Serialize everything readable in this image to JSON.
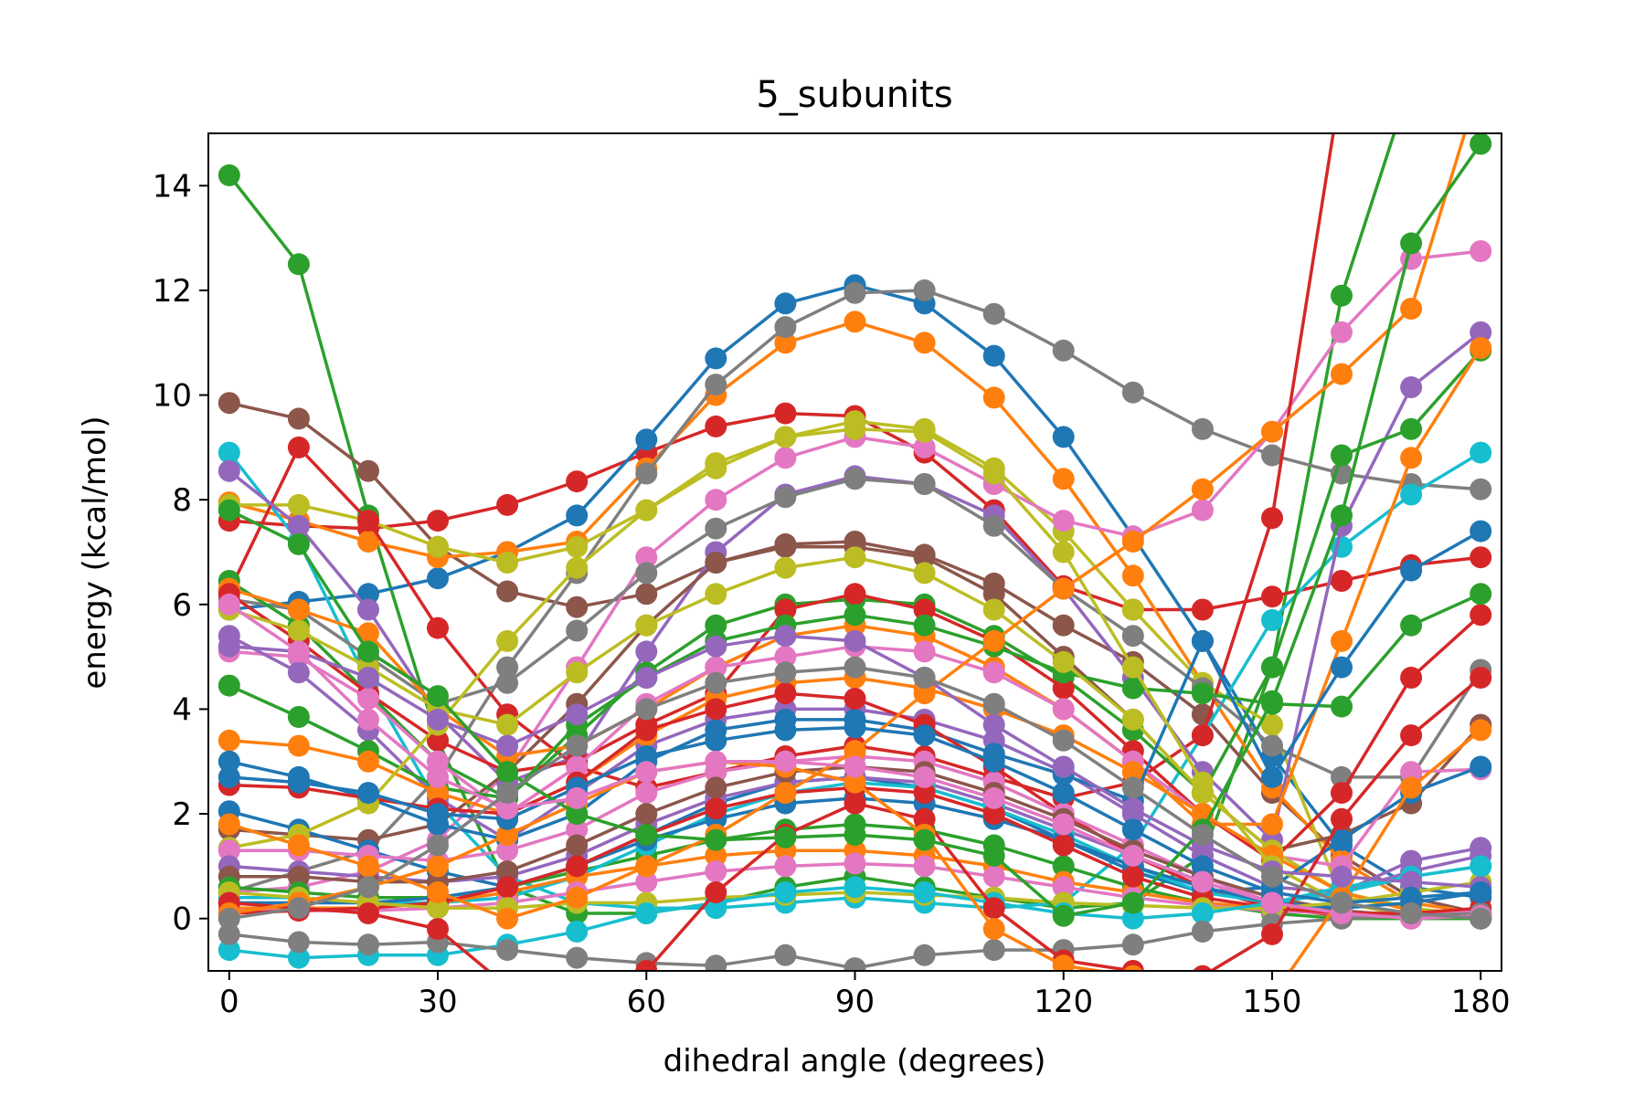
{
  "chart_data": {
    "type": "line",
    "title": "5_subunits",
    "xlabel": "dihedral angle (degrees)",
    "ylabel": "energy (kcal/mol)",
    "xlim": [
      -3,
      183
    ],
    "ylim": [
      -1,
      15
    ],
    "xticks": [
      0,
      30,
      60,
      90,
      120,
      150,
      180
    ],
    "yticks": [
      0,
      2,
      4,
      6,
      8,
      10,
      12,
      14
    ],
    "grid": false,
    "legend": "none",
    "marker": "circle",
    "x": [
      0,
      10,
      20,
      30,
      40,
      50,
      60,
      70,
      80,
      90,
      100,
      110,
      120,
      130,
      140,
      150,
      160,
      170,
      180
    ],
    "series": [
      {
        "color": "#2ca02c",
        "values": [
          14.2,
          12.5,
          7.7,
          3.4,
          0.6,
          0.1,
          0.1,
          0.3,
          0.6,
          0.8,
          0.6,
          0.4,
          0.2,
          0.3,
          1.2,
          4.8,
          11.9,
          16.0,
          20.0
        ]
      },
      {
        "color": "#8c564b",
        "values": [
          9.85,
          9.55,
          8.55,
          7.1,
          6.25,
          5.95,
          6.2,
          6.8,
          7.15,
          7.2,
          6.95,
          6.4,
          5.6,
          4.9,
          3.9,
          2.4,
          1.2,
          0.4,
          0.1
        ]
      },
      {
        "color": "#d62728",
        "values": [
          7.6,
          7.5,
          7.45,
          7.6,
          7.9,
          8.35,
          8.9,
          9.4,
          9.65,
          9.6,
          8.9,
          7.8,
          6.35,
          5.9,
          5.9,
          6.15,
          6.45,
          6.75,
          6.9
        ]
      },
      {
        "color": "#1f77b4",
        "values": [
          5.9,
          6.05,
          6.2,
          6.5,
          7.0,
          7.7,
          9.15,
          10.7,
          11.75,
          12.1,
          11.75,
          10.75,
          9.2,
          7.3,
          5.3,
          3.1,
          1.4,
          0.6,
          0.4
        ]
      },
      {
        "color": "#ff7f0e",
        "values": [
          7.95,
          7.6,
          7.2,
          6.9,
          7.0,
          7.2,
          8.6,
          10.0,
          11.0,
          11.4,
          11.0,
          9.95,
          8.4,
          6.55,
          4.5,
          2.5,
          1.1,
          0.3,
          0.1
        ]
      },
      {
        "color": "#7f7f7f",
        "values": [
          0.5,
          0.9,
          1.3,
          2.7,
          4.8,
          6.6,
          8.5,
          10.2,
          11.3,
          11.95,
          12.0,
          11.55,
          10.85,
          10.05,
          9.35,
          8.85,
          8.5,
          8.3,
          8.2
        ]
      },
      {
        "color": "#bcbd22",
        "values": [
          7.9,
          7.9,
          7.6,
          7.1,
          6.8,
          7.1,
          7.8,
          8.6,
          9.2,
          9.5,
          9.35,
          8.6,
          7.4,
          5.9,
          4.5,
          3.7,
          0.4,
          0.2,
          0.0
        ]
      },
      {
        "color": "#e377c2",
        "values": [
          0.5,
          0.6,
          0.9,
          1.5,
          2.8,
          4.8,
          6.9,
          8.0,
          8.8,
          9.2,
          9.0,
          8.3,
          7.6,
          7.3,
          7.8,
          9.3,
          11.2,
          12.6,
          12.75
        ]
      },
      {
        "color": "#17becf",
        "values": [
          8.9,
          7.2,
          4.5,
          2.2,
          0.8,
          0.3,
          0.2,
          0.2,
          0.3,
          0.4,
          0.3,
          0.2,
          0.3,
          1.4,
          3.5,
          5.7,
          7.1,
          8.1,
          8.9
        ]
      },
      {
        "color": "#d62728",
        "values": [
          6.25,
          9.0,
          7.6,
          5.55,
          3.9,
          2.9,
          2.5,
          2.8,
          3.1,
          3.3,
          3.1,
          2.7,
          2.3,
          2.6,
          3.5,
          7.65,
          16.0,
          16.0,
          16.0
        ]
      },
      {
        "color": "#9467bd",
        "values": [
          8.55,
          7.5,
          5.9,
          3.9,
          2.6,
          3.1,
          5.1,
          7.0,
          8.1,
          8.45,
          8.3,
          7.7,
          6.3,
          4.6,
          2.8,
          1.5,
          7.5,
          10.15,
          11.2
        ]
      },
      {
        "color": "#7f7f7f",
        "values": [
          6.1,
          5.9,
          5.0,
          4.1,
          4.5,
          5.5,
          6.6,
          7.45,
          8.05,
          8.4,
          8.3,
          7.5,
          6.3,
          5.4,
          4.4,
          3.3,
          2.7,
          2.7,
          4.75
        ]
      },
      {
        "color": "#8c564b",
        "values": [
          1.7,
          1.6,
          1.5,
          1.8,
          2.8,
          4.1,
          5.6,
          6.8,
          7.1,
          7.1,
          6.9,
          6.2,
          5.0,
          3.8,
          2.4,
          1.3,
          1.6,
          2.2,
          3.7
        ]
      },
      {
        "color": "#2ca02c",
        "values": [
          6.45,
          5.6,
          4.3,
          3.0,
          2.3,
          3.5,
          4.7,
          5.6,
          6.0,
          6.1,
          6.0,
          5.4,
          4.6,
          3.6,
          2.4,
          4.8,
          8.85,
          9.35,
          10.85
        ]
      },
      {
        "color": "#ff7f0e",
        "values": [
          6.3,
          5.9,
          5.45,
          4.0,
          3.1,
          3.3,
          4.0,
          4.8,
          5.4,
          5.6,
          5.4,
          4.8,
          4.0,
          3.0,
          1.8,
          1.8,
          5.3,
          8.8,
          10.9
        ]
      },
      {
        "color": "#d62728",
        "values": [
          6.2,
          5.3,
          4.3,
          3.4,
          2.8,
          3.0,
          3.7,
          4.3,
          5.9,
          6.2,
          5.9,
          5.3,
          4.4,
          3.2,
          2.0,
          1.1,
          2.4,
          4.6,
          5.8
        ]
      },
      {
        "color": "#e377c2",
        "values": [
          5.1,
          5.0,
          4.2,
          3.0,
          2.0,
          2.9,
          4.1,
          4.8,
          5.0,
          5.2,
          5.1,
          4.7,
          4.0,
          3.0,
          2.0,
          1.2,
          1.0,
          2.8,
          2.85
        ]
      },
      {
        "color": "#9467bd",
        "values": [
          5.4,
          4.7,
          3.6,
          2.3,
          1.5,
          2.4,
          3.3,
          3.8,
          4.0,
          4.0,
          3.8,
          3.4,
          2.8,
          2.0,
          1.2,
          0.6,
          0.5,
          1.1,
          1.35
        ]
      },
      {
        "color": "#2ca02c",
        "values": [
          4.45,
          3.85,
          3.2,
          2.5,
          2.3,
          3.7,
          4.6,
          5.3,
          5.6,
          5.8,
          5.6,
          5.2,
          4.7,
          4.4,
          4.3,
          4.1,
          4.05,
          5.6,
          6.2
        ]
      },
      {
        "color": "#bcbd22",
        "values": [
          5.9,
          5.5,
          4.8,
          4.0,
          3.7,
          4.7,
          5.6,
          6.2,
          6.7,
          6.9,
          6.6,
          5.9,
          4.9,
          3.8,
          2.4,
          1.3,
          0.5,
          0.2,
          0.05
        ]
      },
      {
        "color": "#ff7f0e",
        "values": [
          3.4,
          3.3,
          3.0,
          2.4,
          2.0,
          2.6,
          3.5,
          4.2,
          4.5,
          4.6,
          4.4,
          4.0,
          3.5,
          2.8,
          2.0,
          1.2,
          0.5,
          0.15,
          0.0
        ]
      },
      {
        "color": "#1f77b4",
        "values": [
          3.0,
          2.7,
          2.3,
          1.8,
          1.5,
          2.0,
          3.0,
          3.6,
          3.8,
          3.8,
          3.6,
          3.15,
          2.75,
          2.25,
          5.3,
          2.7,
          4.8,
          6.65,
          7.4
        ]
      },
      {
        "color": "#d62728",
        "values": [
          2.55,
          2.5,
          2.3,
          2.1,
          2.0,
          2.6,
          3.6,
          4.0,
          4.3,
          4.2,
          3.7,
          2.9,
          2.0,
          1.2,
          0.6,
          0.2,
          0.05,
          0.0,
          0.0
        ]
      },
      {
        "color": "#1f77b4",
        "values": [
          2.05,
          1.7,
          1.3,
          0.9,
          0.6,
          1.0,
          1.6,
          2.2,
          2.6,
          2.7,
          2.5,
          2.1,
          1.5,
          0.9,
          0.5,
          0.6,
          1.5,
          2.4,
          2.9
        ]
      },
      {
        "color": "#bcbd22",
        "values": [
          1.35,
          1.6,
          2.2,
          3.7,
          5.3,
          6.7,
          7.8,
          8.7,
          9.2,
          9.35,
          9.3,
          8.5,
          7.0,
          4.8,
          2.6,
          1.0,
          0.3,
          0.05,
          0.0
        ]
      },
      {
        "color": "#e377c2",
        "values": [
          1.3,
          1.3,
          1.2,
          1.1,
          1.3,
          1.7,
          2.4,
          2.8,
          3.0,
          3.1,
          3.0,
          2.6,
          2.0,
          1.4,
          0.8,
          0.3,
          0.05,
          0.0,
          0.0
        ]
      },
      {
        "color": "#9467bd",
        "values": [
          1.0,
          0.9,
          0.8,
          0.7,
          0.8,
          1.2,
          1.8,
          2.3,
          2.6,
          2.7,
          2.6,
          2.2,
          1.7,
          1.2,
          0.7,
          0.3,
          0.5,
          0.9,
          1.2
        ]
      },
      {
        "color": "#8c564b",
        "values": [
          0.8,
          0.8,
          0.7,
          0.7,
          0.9,
          1.4,
          2.0,
          2.5,
          2.8,
          2.9,
          2.8,
          2.4,
          1.9,
          1.3,
          0.8,
          0.4,
          0.15,
          0.05,
          0.0
        ]
      },
      {
        "color": "#2ca02c",
        "values": [
          0.6,
          0.5,
          0.4,
          0.4,
          0.6,
          0.9,
          1.2,
          1.5,
          1.7,
          1.8,
          1.7,
          1.4,
          1.0,
          0.6,
          0.3,
          0.1,
          0.0,
          0.0,
          0.0
        ]
      },
      {
        "color": "#17becf",
        "values": [
          0.4,
          0.4,
          0.3,
          0.3,
          0.4,
          0.8,
          1.4,
          2.0,
          2.4,
          2.6,
          2.5,
          2.1,
          1.6,
          1.0,
          0.5,
          0.3,
          0.5,
          0.8,
          1.0
        ]
      },
      {
        "color": "#1f77b4",
        "values": [
          0.3,
          0.3,
          0.3,
          0.4,
          0.6,
          1.0,
          1.5,
          1.9,
          2.2,
          2.3,
          2.2,
          1.9,
          1.5,
          1.0,
          0.6,
          0.3,
          0.2,
          0.3,
          0.5
        ]
      },
      {
        "color": "#ff7f0e",
        "values": [
          0.2,
          0.2,
          0.2,
          0.3,
          0.5,
          0.8,
          1.0,
          1.2,
          1.3,
          1.3,
          1.2,
          1.0,
          0.7,
          0.5,
          0.3,
          0.2,
          0.1,
          0.1,
          0.1
        ]
      },
      {
        "color": "#e377c2",
        "values": [
          0.15,
          0.15,
          0.15,
          0.2,
          0.3,
          0.5,
          0.7,
          0.9,
          1.0,
          1.05,
          1.0,
          0.8,
          0.6,
          0.4,
          0.25,
          0.15,
          0.1,
          0.1,
          0.15
        ]
      },
      {
        "color": "#d62728",
        "values": [
          0.1,
          0.15,
          0.2,
          0.3,
          0.6,
          1.0,
          1.6,
          2.1,
          2.4,
          2.5,
          2.4,
          2.0,
          1.4,
          0.8,
          0.4,
          0.2,
          0.1,
          0.1,
          0.2
        ]
      },
      {
        "color": "#bcbd22",
        "values": [
          0.5,
          0.4,
          0.3,
          0.2,
          0.2,
          0.3,
          0.3,
          0.4,
          0.45,
          0.5,
          0.45,
          0.4,
          0.3,
          0.25,
          0.2,
          0.2,
          0.3,
          0.5,
          0.7
        ]
      },
      {
        "color": "#17becf",
        "values": [
          -0.6,
          -0.75,
          -0.7,
          -0.7,
          -0.5,
          -0.25,
          0.1,
          0.3,
          0.5,
          0.6,
          0.5,
          0.3,
          0.1,
          0.0,
          0.1,
          0.3,
          0.6,
          0.8,
          1.0
        ]
      },
      {
        "color": "#7f7f7f",
        "values": [
          -0.3,
          -0.45,
          -0.5,
          -0.45,
          -0.6,
          -0.75,
          -0.85,
          -0.9,
          -0.7,
          -0.95,
          -0.7,
          -0.6,
          -0.6,
          -0.5,
          -0.25,
          -0.1,
          0.0,
          0.05,
          0.1
        ]
      },
      {
        "color": "#ff7f0e",
        "values": [
          1.8,
          1.4,
          1.0,
          0.5,
          0.0,
          0.4,
          1.0,
          1.6,
          2.4,
          3.2,
          4.3,
          5.3,
          6.3,
          7.2,
          8.2,
          9.3,
          10.4,
          11.65,
          16.0
        ]
      },
      {
        "color": "#d62728",
        "values": [
          0.3,
          0.2,
          0.1,
          -0.2,
          -1.3,
          -2.0,
          -1.0,
          0.5,
          1.6,
          2.2,
          1.9,
          0.2,
          -0.8,
          -1.0,
          -1.1,
          -0.3,
          1.9,
          3.5,
          4.6
        ]
      },
      {
        "color": "#ff7f0e",
        "values": [
          0.1,
          0.3,
          0.6,
          1.0,
          1.6,
          2.2,
          2.8,
          3.0,
          2.9,
          2.6,
          1.6,
          -0.2,
          -0.9,
          -1.1,
          -2.0,
          -1.5,
          0.4,
          2.5,
          3.6
        ]
      },
      {
        "color": "#9467bd",
        "values": [
          5.2,
          5.1,
          4.6,
          3.8,
          3.3,
          3.9,
          4.6,
          5.2,
          5.4,
          5.3,
          4.6,
          3.7,
          2.9,
          2.1,
          1.4,
          0.9,
          0.8,
          0.7,
          0.6
        ]
      },
      {
        "color": "#1f77b4",
        "values": [
          2.7,
          2.6,
          2.4,
          2.0,
          1.9,
          2.5,
          3.1,
          3.4,
          3.6,
          3.65,
          3.5,
          3.0,
          2.4,
          1.7,
          1.0,
          0.5,
          0.3,
          0.4,
          0.5
        ]
      },
      {
        "color": "#2ca02c",
        "values": [
          7.8,
          7.15,
          5.1,
          4.25,
          2.8,
          2.0,
          1.6,
          1.5,
          1.55,
          1.6,
          1.5,
          1.2,
          0.05,
          0.3,
          1.7,
          4.15,
          7.7,
          12.9,
          14.8
        ]
      },
      {
        "color": "#e377c2",
        "values": [
          6.0,
          5.1,
          3.8,
          2.7,
          2.1,
          2.3,
          2.8,
          3.0,
          3.0,
          2.9,
          2.7,
          2.3,
          1.8,
          1.2,
          0.7,
          0.3,
          0.1,
          0.0,
          0.05
        ]
      },
      {
        "color": "#7f7f7f",
        "values": [
          0.0,
          0.2,
          0.6,
          1.4,
          2.4,
          3.3,
          4.0,
          4.5,
          4.7,
          4.8,
          4.6,
          4.1,
          3.4,
          2.5,
          1.6,
          0.8,
          0.3,
          0.1,
          0.0
        ]
      }
    ]
  }
}
